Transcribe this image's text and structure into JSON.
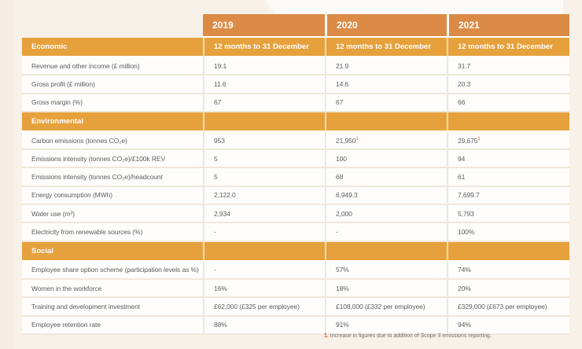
{
  "colors": {
    "page_background": "#f8f1e9",
    "year_header_orange": "#db8b46",
    "section_header_orange": "#e6a13d",
    "row_divider_beige": "#f0e7da",
    "text_gray": "#5d5d5f",
    "accent_red": "#d9532c",
    "header_text": "#ffffff"
  },
  "table": {
    "year_columns": [
      {
        "year": "2019",
        "subtitle": "12 months to 31 December"
      },
      {
        "year": "2020",
        "subtitle": "12 months to 31 December"
      },
      {
        "year": "2021",
        "subtitle": "12 months to 31 December"
      }
    ],
    "sections": [
      {
        "title": "Economic",
        "rows": [
          {
            "label": "Revenue and other income (£ million)",
            "values": [
              "19.1",
              "21.9",
              "31.7"
            ]
          },
          {
            "label": "Gross profit (£ million)",
            "values": [
              "11.6",
              "14.6",
              "20.3"
            ]
          },
          {
            "label": "Gross margin (%)",
            "values": [
              "67",
              "67",
              "66"
            ]
          }
        ]
      },
      {
        "title": "Environmental",
        "rows": [
          {
            "label": "Carbon emissions (tonnes CO₂e)",
            "values": [
              "953",
              "21,950¹",
              "29,675¹"
            ]
          },
          {
            "label": "Emissions intensity (tonnes CO₂e)/£100k REV",
            "values": [
              "5",
              "100",
              "94"
            ]
          },
          {
            "label": "Emissions intensity (tonnes CO₂e)/headcount",
            "values": [
              "5",
              "68",
              "61"
            ]
          },
          {
            "label": "Energy consumption (MWh)",
            "values": [
              "2,122.0",
              "6,949.3",
              "7,699.7"
            ]
          },
          {
            "label": "Water use (m³)",
            "values": [
              "2,934",
              "2,000",
              "5,793"
            ]
          },
          {
            "label": "Electricity from renewable sources (%)",
            "values": [
              "-",
              "-",
              "100%"
            ]
          }
        ]
      },
      {
        "title": "Social",
        "rows": [
          {
            "label": "Employee share option scheme (participation levels as %)",
            "values": [
              "-",
              "57%",
              "74%"
            ]
          },
          {
            "label": "Women in the workforce",
            "values": [
              "16%",
              "18%",
              "20%"
            ]
          },
          {
            "label": "Training and development investment",
            "values": [
              "£62,000 (£325 per employee)",
              "£108,000 (£332 per employee)",
              "£329,000 (£673 per employee)"
            ]
          },
          {
            "label": "Employee retention rate",
            "values": [
              "88%",
              "91%",
              "94%"
            ]
          }
        ]
      }
    ]
  },
  "footnote": {
    "marker": "1.",
    "text": "Increase in figures due to addition of Scope 3 emissions reporting."
  }
}
